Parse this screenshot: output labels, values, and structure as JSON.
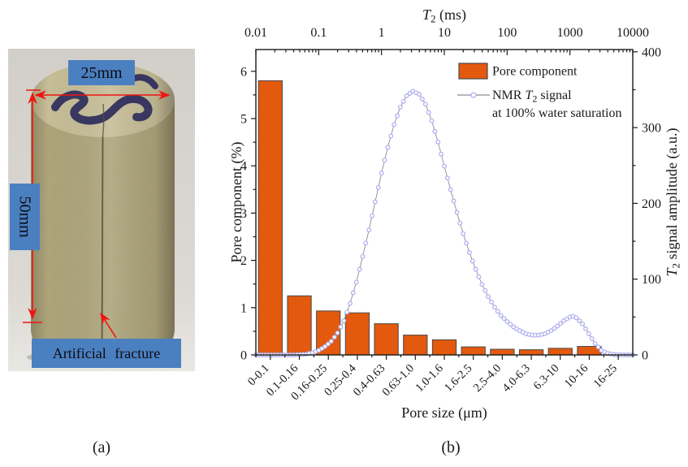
{
  "figure": {
    "panel_a_caption": "(a)",
    "panel_b_caption": "(b)"
  },
  "panel_a": {
    "labels": {
      "diameter": "25mm",
      "height": "50mm",
      "fracture": "Artificial fracture"
    }
  },
  "colors": {
    "bar_fill": "#e3590e",
    "bar_border": "#4a4a4a",
    "marker_stroke": "#b1b1ee",
    "curve_line": "#8a8a96",
    "axis": "#1a1a1a",
    "label_box_blue": "#4b80c0",
    "arrow_red": "#ee1510",
    "photo_bg": "#d7d4ce",
    "core_body": "#b0a77c",
    "core_top": "#cbc29b",
    "ink_mark": "#31305e",
    "fracture": "#55503a"
  },
  "chart_data": {
    "type": "bar",
    "title": "",
    "categories": [
      "0-0.1",
      "0.1-0.16",
      "0.16-0.25",
      "0.25-0.4",
      "0.4-0.63",
      "0.63-1.0",
      "1.0-1.6",
      "1.6-2.5",
      "2.5-4.0",
      "4.0-6.3",
      "6.3-10",
      "10-16",
      "16-25"
    ],
    "series": [
      {
        "name": "Pore component",
        "type": "bar",
        "axis": "left",
        "values": [
          5.8,
          1.25,
          0.93,
          0.89,
          0.66,
          0.42,
          0.32,
          0.17,
          0.12,
          0.11,
          0.14,
          0.18,
          0.03
        ]
      },
      {
        "name": "NMR T2 signal at 100% water saturation",
        "type": "line",
        "axis": "right",
        "x_units": "log10 of T2 in ms",
        "points": [
          [
            -2,
            0
          ],
          [
            -1.4,
            0
          ],
          [
            -1.2,
            1
          ],
          [
            -1.1,
            3
          ],
          [
            -1.0,
            6
          ],
          [
            -0.9,
            11
          ],
          [
            -0.8,
            18
          ],
          [
            -0.7,
            29
          ],
          [
            -0.6,
            45
          ],
          [
            -0.5,
            68
          ],
          [
            -0.4,
            96
          ],
          [
            -0.3,
            130
          ],
          [
            -0.2,
            165
          ],
          [
            -0.1,
            202
          ],
          [
            0,
            240
          ],
          [
            0.1,
            274
          ],
          [
            0.2,
            304
          ],
          [
            0.3,
            327
          ],
          [
            0.4,
            342
          ],
          [
            0.5,
            348
          ],
          [
            0.6,
            344
          ],
          [
            0.7,
            331
          ],
          [
            0.8,
            309
          ],
          [
            0.9,
            281
          ],
          [
            1.0,
            249
          ],
          [
            1.1,
            218
          ],
          [
            1.2,
            188
          ],
          [
            1.3,
            160
          ],
          [
            1.4,
            135
          ],
          [
            1.5,
            113
          ],
          [
            1.6,
            93
          ],
          [
            1.7,
            77
          ],
          [
            1.8,
            63
          ],
          [
            1.9,
            52
          ],
          [
            2.0,
            44
          ],
          [
            2.1,
            37
          ],
          [
            2.2,
            32
          ],
          [
            2.3,
            28
          ],
          [
            2.4,
            26
          ],
          [
            2.5,
            26
          ],
          [
            2.6,
            28
          ],
          [
            2.7,
            32
          ],
          [
            2.8,
            38
          ],
          [
            2.9,
            45
          ],
          [
            3.0,
            50
          ],
          [
            3.05,
            51
          ],
          [
            3.1,
            49
          ],
          [
            3.2,
            41
          ],
          [
            3.3,
            28
          ],
          [
            3.4,
            15
          ],
          [
            3.5,
            6
          ],
          [
            3.6,
            2
          ],
          [
            3.7,
            0.5
          ],
          [
            3.8,
            0
          ],
          [
            4,
            0
          ]
        ]
      }
    ],
    "axes": {
      "top": {
        "label": "T2 (ms)",
        "scale": "log",
        "tick_labels": [
          "0.01",
          "0.1",
          "1",
          "10",
          "100",
          "1000",
          "10000"
        ],
        "range_log10": [
          -2,
          4
        ]
      },
      "bottom": {
        "label": "Pore size (μm)"
      },
      "left": {
        "label": "Pore component (%)",
        "tick_labels": [
          "0",
          "1",
          "2",
          "3",
          "4",
          "5",
          "6"
        ],
        "tick_values": [
          0,
          1,
          2,
          3,
          4,
          5,
          6
        ],
        "range": [
          0,
          6.46
        ],
        "minor_step": 0.5
      },
      "right": {
        "label": "T2 signal amplitude (a.u.)",
        "tick_labels": [
          "0",
          "100",
          "200",
          "300",
          "400"
        ],
        "tick_values": [
          0,
          100,
          200,
          300,
          400
        ],
        "range": [
          0,
          403
        ],
        "minor_step": 50
      }
    },
    "legend": {
      "position": "top-right-inside",
      "entries": [
        {
          "type": "bar",
          "label": "Pore component"
        },
        {
          "type": "line-marker",
          "label": "NMR T2 signal",
          "label2": "at 100% water saturation"
        }
      ]
    },
    "grid": false
  }
}
